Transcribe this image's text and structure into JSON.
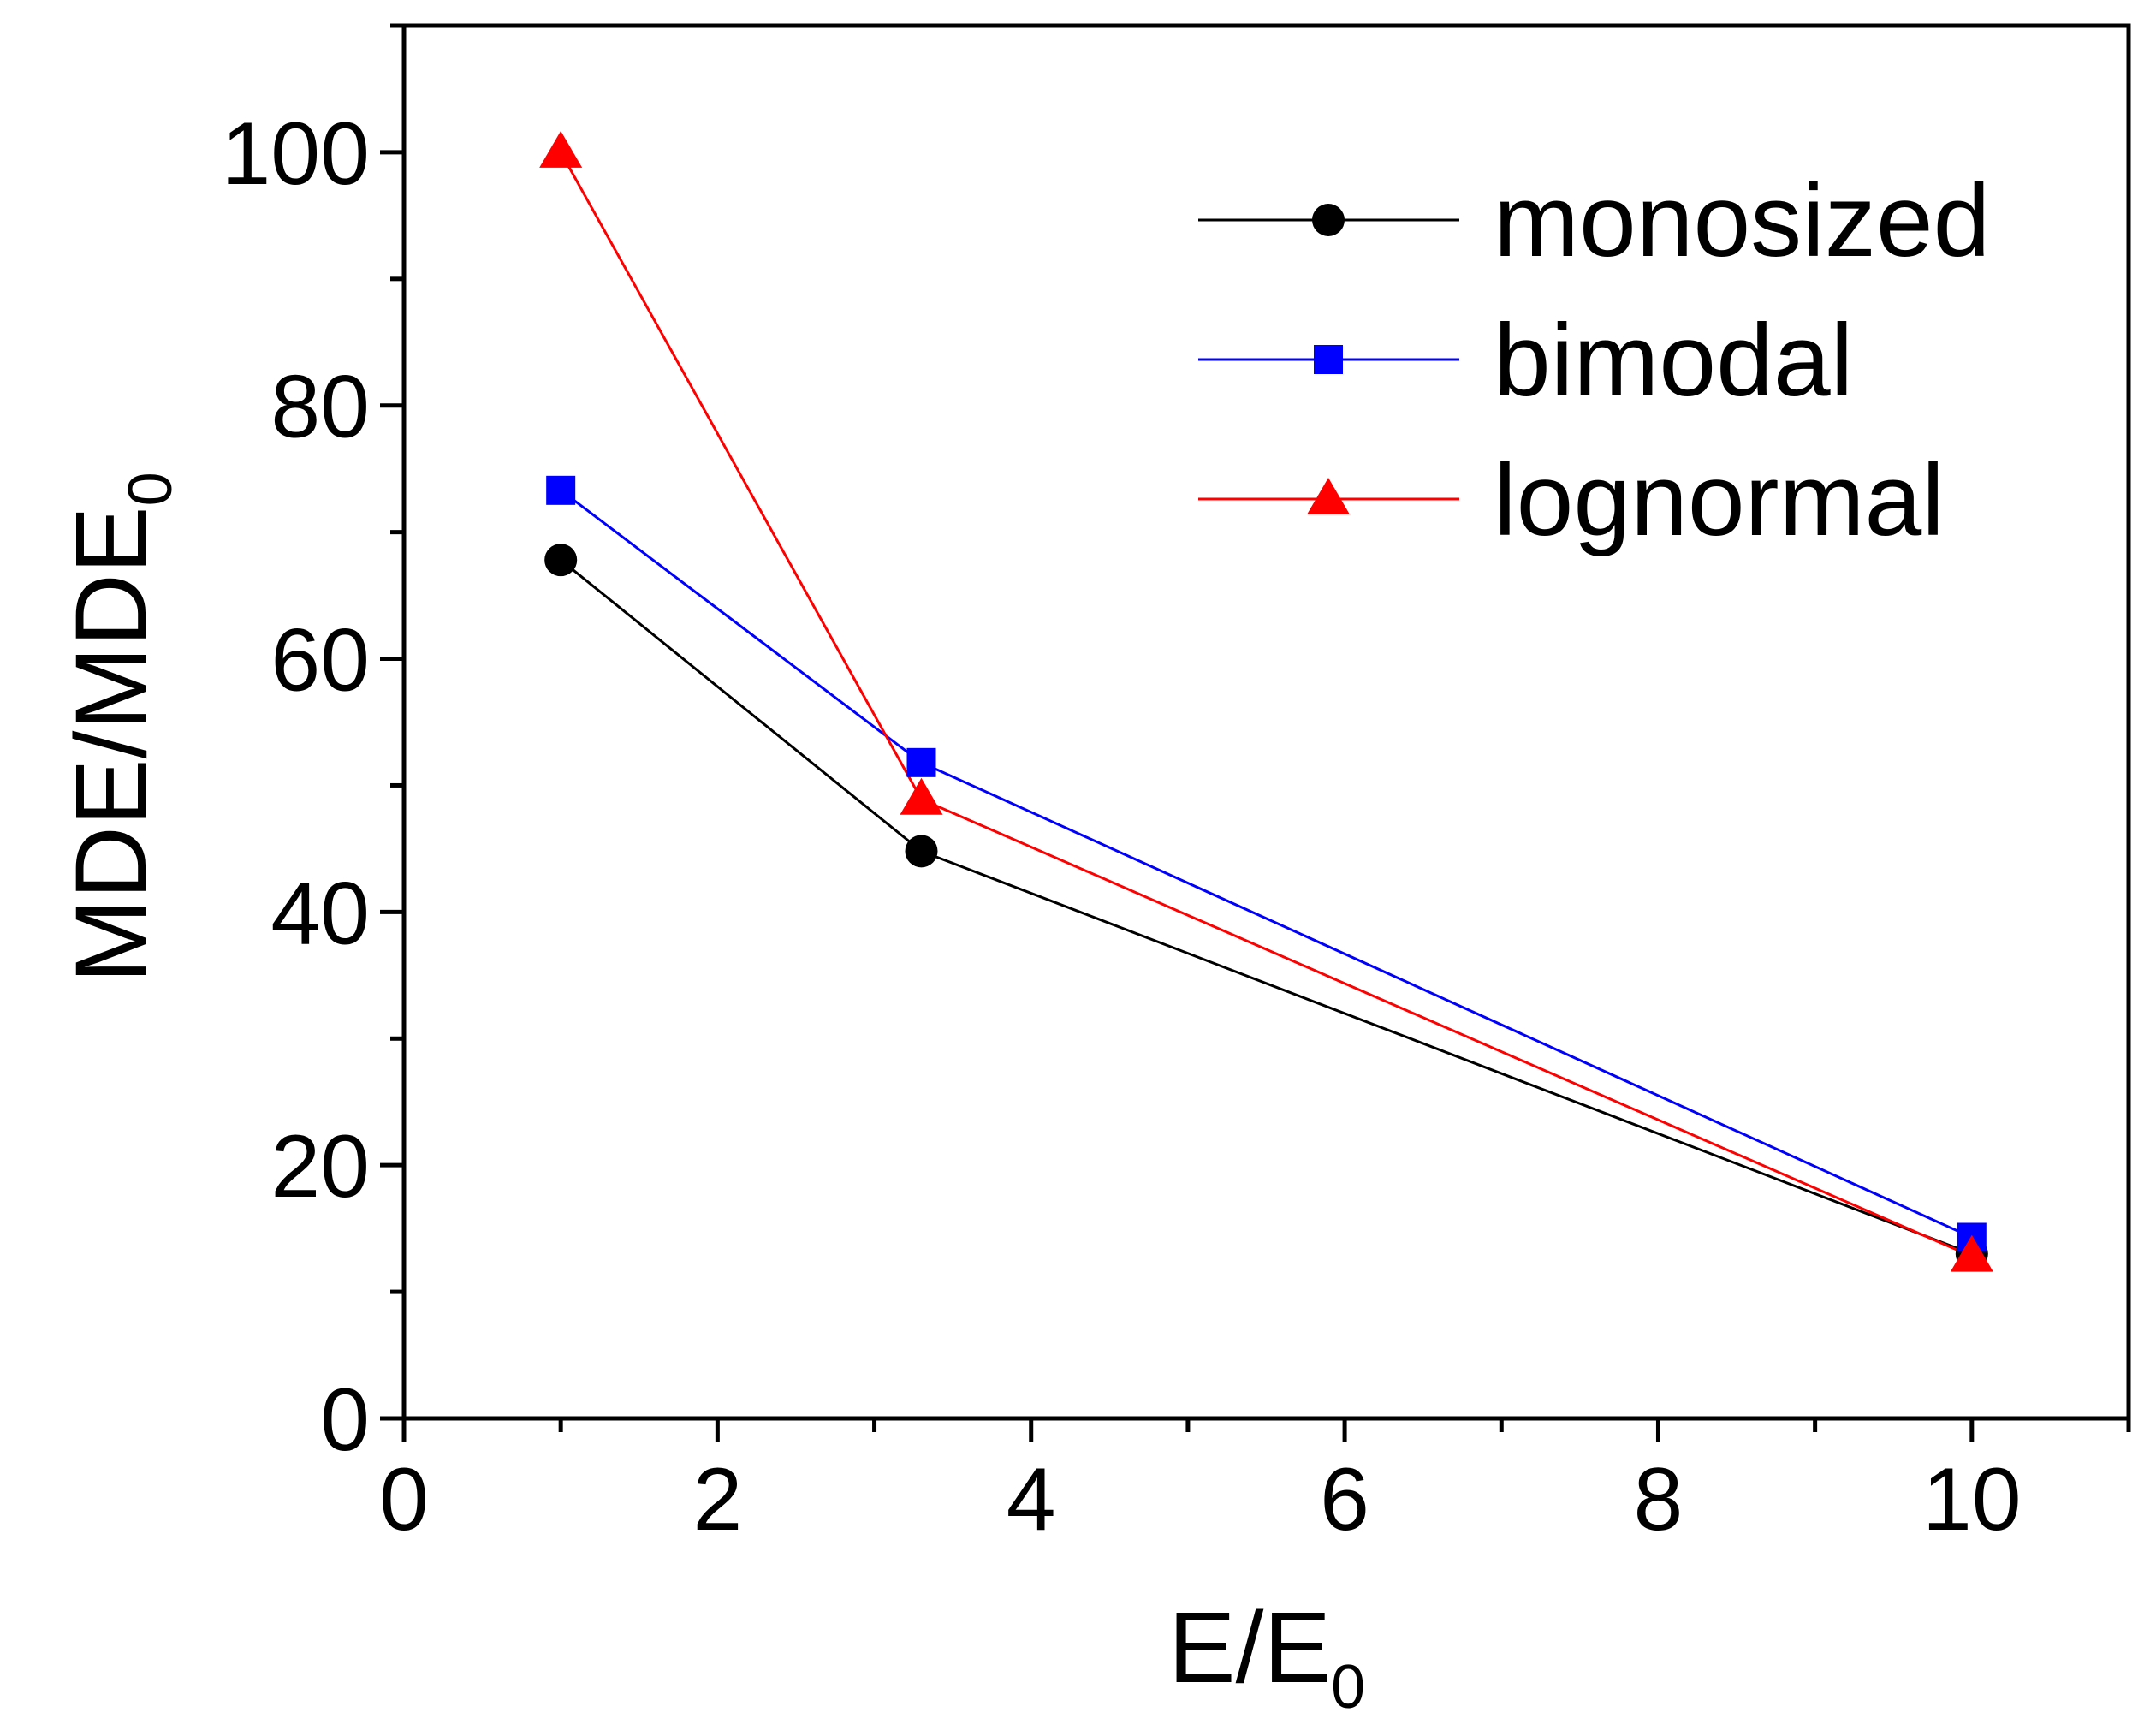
{
  "chart_data": {
    "type": "line",
    "title": "",
    "xlabel": {
      "main": "E/E",
      "sub": "0"
    },
    "ylabel": {
      "main": "MDE/MDE",
      "sub": "0"
    },
    "xlim": [
      0,
      11
    ],
    "ylim": [
      0,
      110
    ],
    "x_ticks": [
      0,
      2,
      4,
      6,
      8,
      10
    ],
    "x_tick_labels": [
      "0",
      "2",
      "4",
      "6",
      "8",
      "10"
    ],
    "x_minor_ticks": [
      1,
      3,
      5,
      7,
      9,
      11
    ],
    "y_ticks": [
      0,
      20,
      40,
      60,
      80,
      100
    ],
    "y_tick_labels": [
      "0",
      "20",
      "40",
      "60",
      "80",
      "100"
    ],
    "y_minor_ticks": [
      10,
      30,
      50,
      70,
      90,
      110
    ],
    "grid": false,
    "legend_position": "top-right",
    "series": [
      {
        "name": "monosized",
        "color": "#000000",
        "marker": "circle",
        "x": [
          1,
          3.3,
          10
        ],
        "y": [
          67.8,
          44.8,
          13.0
        ]
      },
      {
        "name": "bimodal",
        "color": "#0000ff",
        "marker": "square",
        "x": [
          1,
          3.3,
          10
        ],
        "y": [
          73.3,
          51.8,
          14.3
        ]
      },
      {
        "name": "lognormal",
        "color": "#ff0000",
        "marker": "triangle",
        "x": [
          1,
          3.3,
          10
        ],
        "y": [
          100,
          48.9,
          12.8
        ]
      }
    ]
  }
}
